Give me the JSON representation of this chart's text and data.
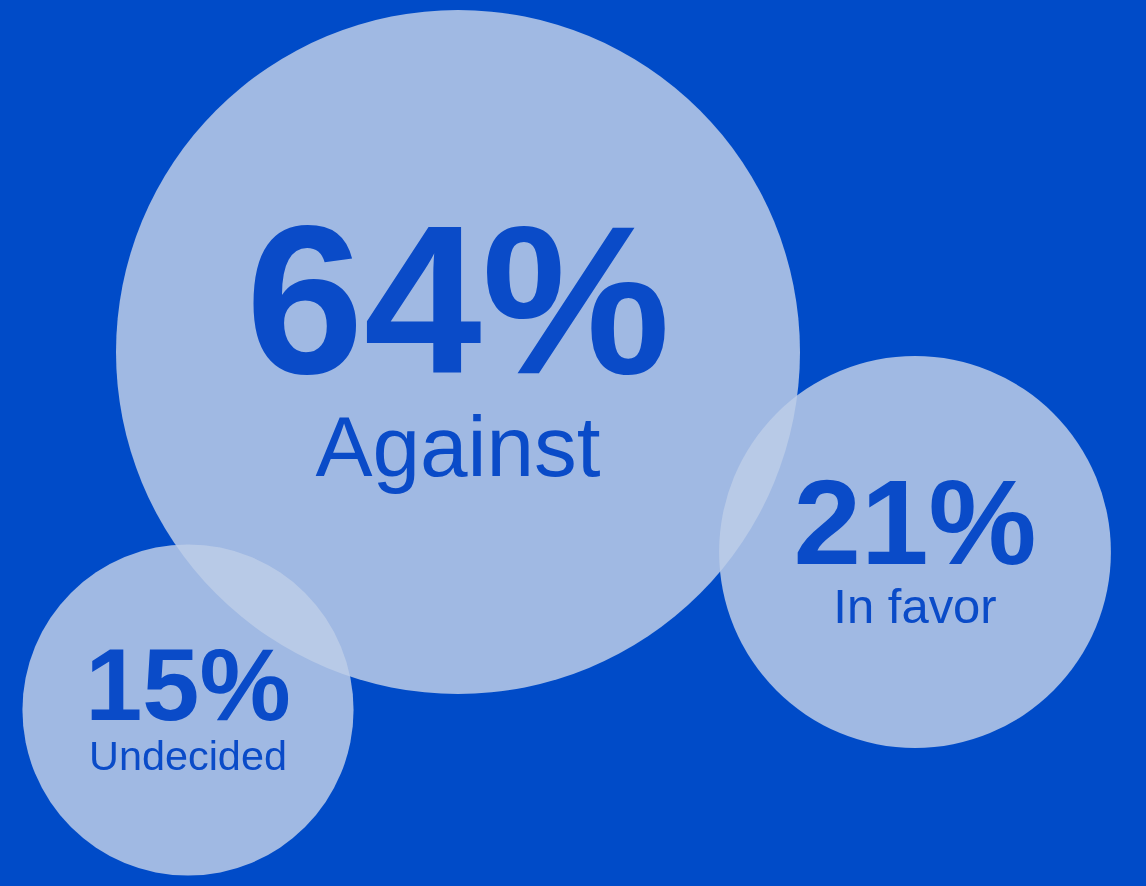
{
  "chart_data": {
    "type": "other",
    "categories": [
      "Against",
      "In favor",
      "Undecided"
    ],
    "values": [
      64,
      21,
      15
    ],
    "colors": [
      "#bccde8",
      "#bccde8",
      "#bccde8"
    ],
    "value_labels": [
      "64%",
      "21%",
      "15%"
    ]
  }
}
